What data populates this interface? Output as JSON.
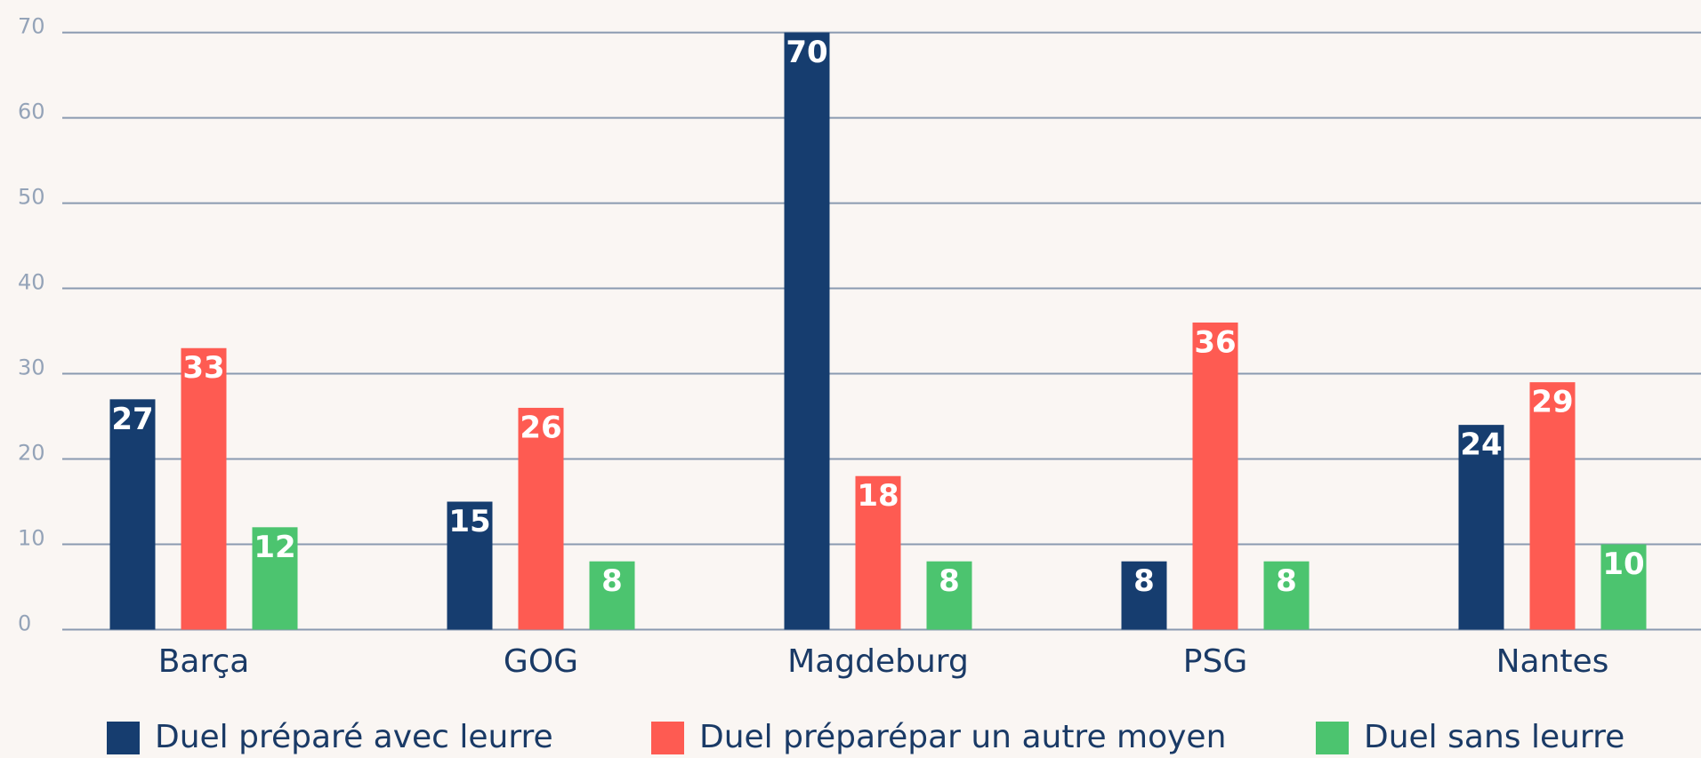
{
  "chart_data": {
    "type": "bar",
    "categories": [
      "Barça",
      "GOG",
      "Magdeburg",
      "PSG",
      "Nantes"
    ],
    "series": [
      {
        "name": "Duel préparé avec leurre",
        "color": "#163d6f",
        "values": [
          27,
          15,
          70,
          8,
          24
        ]
      },
      {
        "name": "Duel préparépar un autre moyen",
        "color": "#fe5b52",
        "values": [
          33,
          26,
          18,
          36,
          29
        ]
      },
      {
        "name": "Duel sans leurre",
        "color": "#4cc46f",
        "values": [
          12,
          8,
          8,
          8,
          10
        ]
      }
    ],
    "ylim": [
      0,
      70
    ],
    "yticks": [
      0,
      10,
      20,
      30,
      40,
      50,
      60,
      70
    ],
    "grid": true,
    "legend": "bottom"
  }
}
